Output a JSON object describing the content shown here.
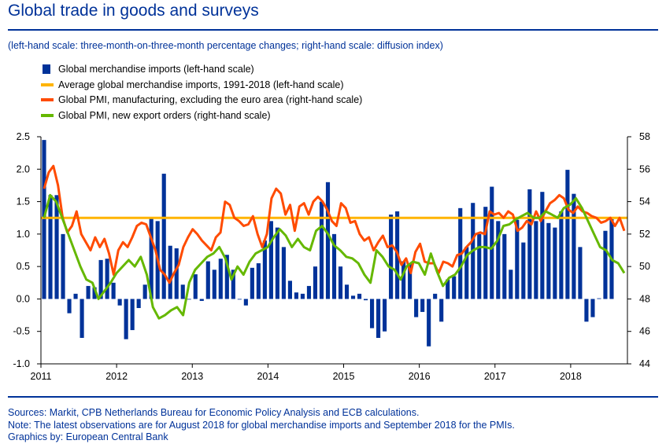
{
  "header": {
    "title": "Global trade in goods and surveys",
    "subtitle": "(left-hand scale: three-month-on-three-month percentage changes; right-hand scale: diffusion index)"
  },
  "footer": {
    "sources": "Sources: Markit, CPB Netherlands Bureau for Economic Policy Analysis and ECB calculations.",
    "note": "Note: The latest observations are for August 2018 for global merchandise imports and September 2018 for the PMIs.",
    "credit": "Graphics by: European Central Bank"
  },
  "colors": {
    "bars": "#003299",
    "average": "#FFB400",
    "pmi_manufacturing": "#FF4B00",
    "pmi_export": "#65B800",
    "title": "#003299"
  },
  "chart_data": {
    "type": "bar",
    "x_tick_labels": [
      "2011",
      "2012",
      "2013",
      "2014",
      "2015",
      "2016",
      "2017",
      "2018"
    ],
    "x_range": [
      "2011-01",
      "2018-09"
    ],
    "y_left": {
      "ylim": [
        -1.0,
        2.5
      ],
      "ticks": [
        "2.5",
        "2.0",
        "1.5",
        "1.0",
        "0.5",
        "0.0",
        "-0.5",
        "-1.0"
      ]
    },
    "y_right": {
      "ylim": [
        44,
        58
      ],
      "ticks": [
        "58",
        "56",
        "54",
        "52",
        "50",
        "48",
        "46",
        "44"
      ]
    },
    "legend_placement": "top-left",
    "grid": false,
    "series": [
      {
        "name": "Global merchandise imports (left-hand scale)",
        "kind": "bar",
        "axis": "left",
        "start": "2011-01",
        "values": [
          2.45,
          1.6,
          1.6,
          1.0,
          -0.22,
          0.08,
          -0.6,
          0.2,
          0.18,
          0.6,
          0.62,
          0.25,
          -0.1,
          -0.62,
          -0.48,
          -0.14,
          0.22,
          1.25,
          1.2,
          1.93,
          0.82,
          0.78,
          0.22,
          0.0,
          0.38,
          -0.03,
          0.58,
          0.45,
          0.62,
          0.68,
          0.45,
          0.0,
          -0.1,
          0.48,
          0.55,
          0.9,
          1.2,
          1.1,
          0.8,
          0.28,
          0.1,
          0.08,
          0.2,
          0.5,
          1.5,
          1.8,
          1.0,
          0.5,
          0.22,
          0.05,
          0.08,
          -0.02,
          -0.45,
          -0.6,
          -0.5,
          1.3,
          1.35,
          0.58,
          0.55,
          -0.28,
          -0.2,
          -0.73,
          0.08,
          -0.35,
          0.3,
          0.35,
          1.4,
          0.8,
          1.48,
          1.0,
          1.42,
          1.73,
          1.2,
          1.0,
          0.45,
          1.22,
          0.87,
          1.69,
          1.2,
          1.65,
          1.17,
          1.1,
          1.35,
          1.99,
          1.62,
          0.8,
          -0.35,
          -0.28,
          0.01,
          1.05,
          1.23
        ]
      },
      {
        "name": "Average global merchandise imports, 1991-2018 (left-hand scale)",
        "kind": "line",
        "axis": "left",
        "value": 1.25
      },
      {
        "name": "Global PMI, manufacturing, excluding the euro area (right-hand scale)",
        "kind": "line",
        "axis": "right",
        "start": "2011-01",
        "values": [
          54.8,
          55.8,
          56.2,
          55.0,
          53.0,
          52.1,
          52.5,
          53.4,
          52.0,
          51.5,
          51.0,
          51.8,
          51.2,
          51.7,
          50.8,
          49.5,
          51.0,
          51.5,
          51.2,
          51.8,
          52.5,
          52.7,
          52.6,
          51.8,
          51.0,
          49.8,
          49.5,
          49.0,
          49.6,
          50.1,
          51.2,
          51.8,
          52.3,
          52.0,
          51.6,
          51.3,
          51.0,
          51.8,
          52.1,
          54.0,
          53.8,
          53.0,
          52.8,
          52.5,
          52.6,
          53.1,
          52.0,
          51.2,
          52.0,
          54.2,
          54.8,
          54.5,
          53.2,
          53.8,
          52.2,
          53.7,
          53.9,
          53.2,
          54.0,
          54.3,
          54.0,
          53.5,
          52.8,
          52.5,
          53.9,
          53.6,
          52.7,
          52.8,
          52.0,
          51.6,
          51.8,
          51.0,
          51.5,
          51.9,
          51.2,
          51.3,
          50.9,
          50.1,
          50.5,
          49.6,
          50.9,
          51.4,
          50.3,
          50.2,
          50.2,
          49.6,
          50.3,
          50.2,
          50.0,
          50.7,
          50.8,
          51.2,
          51.5,
          52.0,
          52.1,
          52.0,
          53.4,
          53.2,
          53.3,
          53.0,
          53.4,
          53.2,
          52.2,
          52.4,
          52.8,
          52.6,
          53.4,
          52.8,
          53.4,
          53.9,
          54.1,
          54.4,
          54.2,
          53.5,
          53.3,
          53.7,
          53.4,
          53.3,
          53.1,
          53.0,
          52.7,
          52.8,
          53.0,
          52.5,
          53.0,
          52.2
        ],
        "end": "2018-09"
      },
      {
        "name": "Global PMI, new export orders (right-hand scale)",
        "kind": "line",
        "axis": "right",
        "start": "2011-01",
        "values": [
          53.0,
          54.4,
          54.0,
          53.0,
          52.0,
          51.0,
          50.0,
          49.2,
          49.0,
          48.0,
          48.5,
          49.0,
          49.6,
          50.0,
          50.4,
          50.0,
          50.6,
          49.5,
          47.5,
          46.8,
          47.0,
          47.3,
          47.5,
          47.0,
          49.0,
          49.8,
          50.2,
          50.6,
          50.8,
          51.2,
          50.5,
          49.2,
          50.0,
          49.5,
          50.3,
          50.8,
          51.0,
          51.2,
          51.8,
          52.3,
          51.9,
          51.2,
          51.7,
          51.2,
          51.0,
          52.2,
          52.5,
          52.0,
          51.3,
          51.0,
          50.6,
          50.5,
          50.2,
          49.5,
          49.0,
          51.0,
          50.6,
          50.0,
          49.8,
          49.2,
          50.0,
          50.3,
          50.2,
          49.5,
          50.8,
          49.7,
          48.8,
          49.3,
          49.5,
          50.0,
          50.7,
          51.0,
          51.2,
          51.2,
          51.1,
          51.6,
          52.5,
          52.6,
          52.9,
          53.1,
          53.3,
          53.0,
          53.0,
          53.4,
          53.2,
          53.0,
          53.6,
          53.8,
          54.2,
          53.6,
          52.8,
          52.0,
          51.2,
          51.0,
          50.4,
          50.2,
          49.6
        ],
        "end": "2018-09"
      }
    ]
  }
}
